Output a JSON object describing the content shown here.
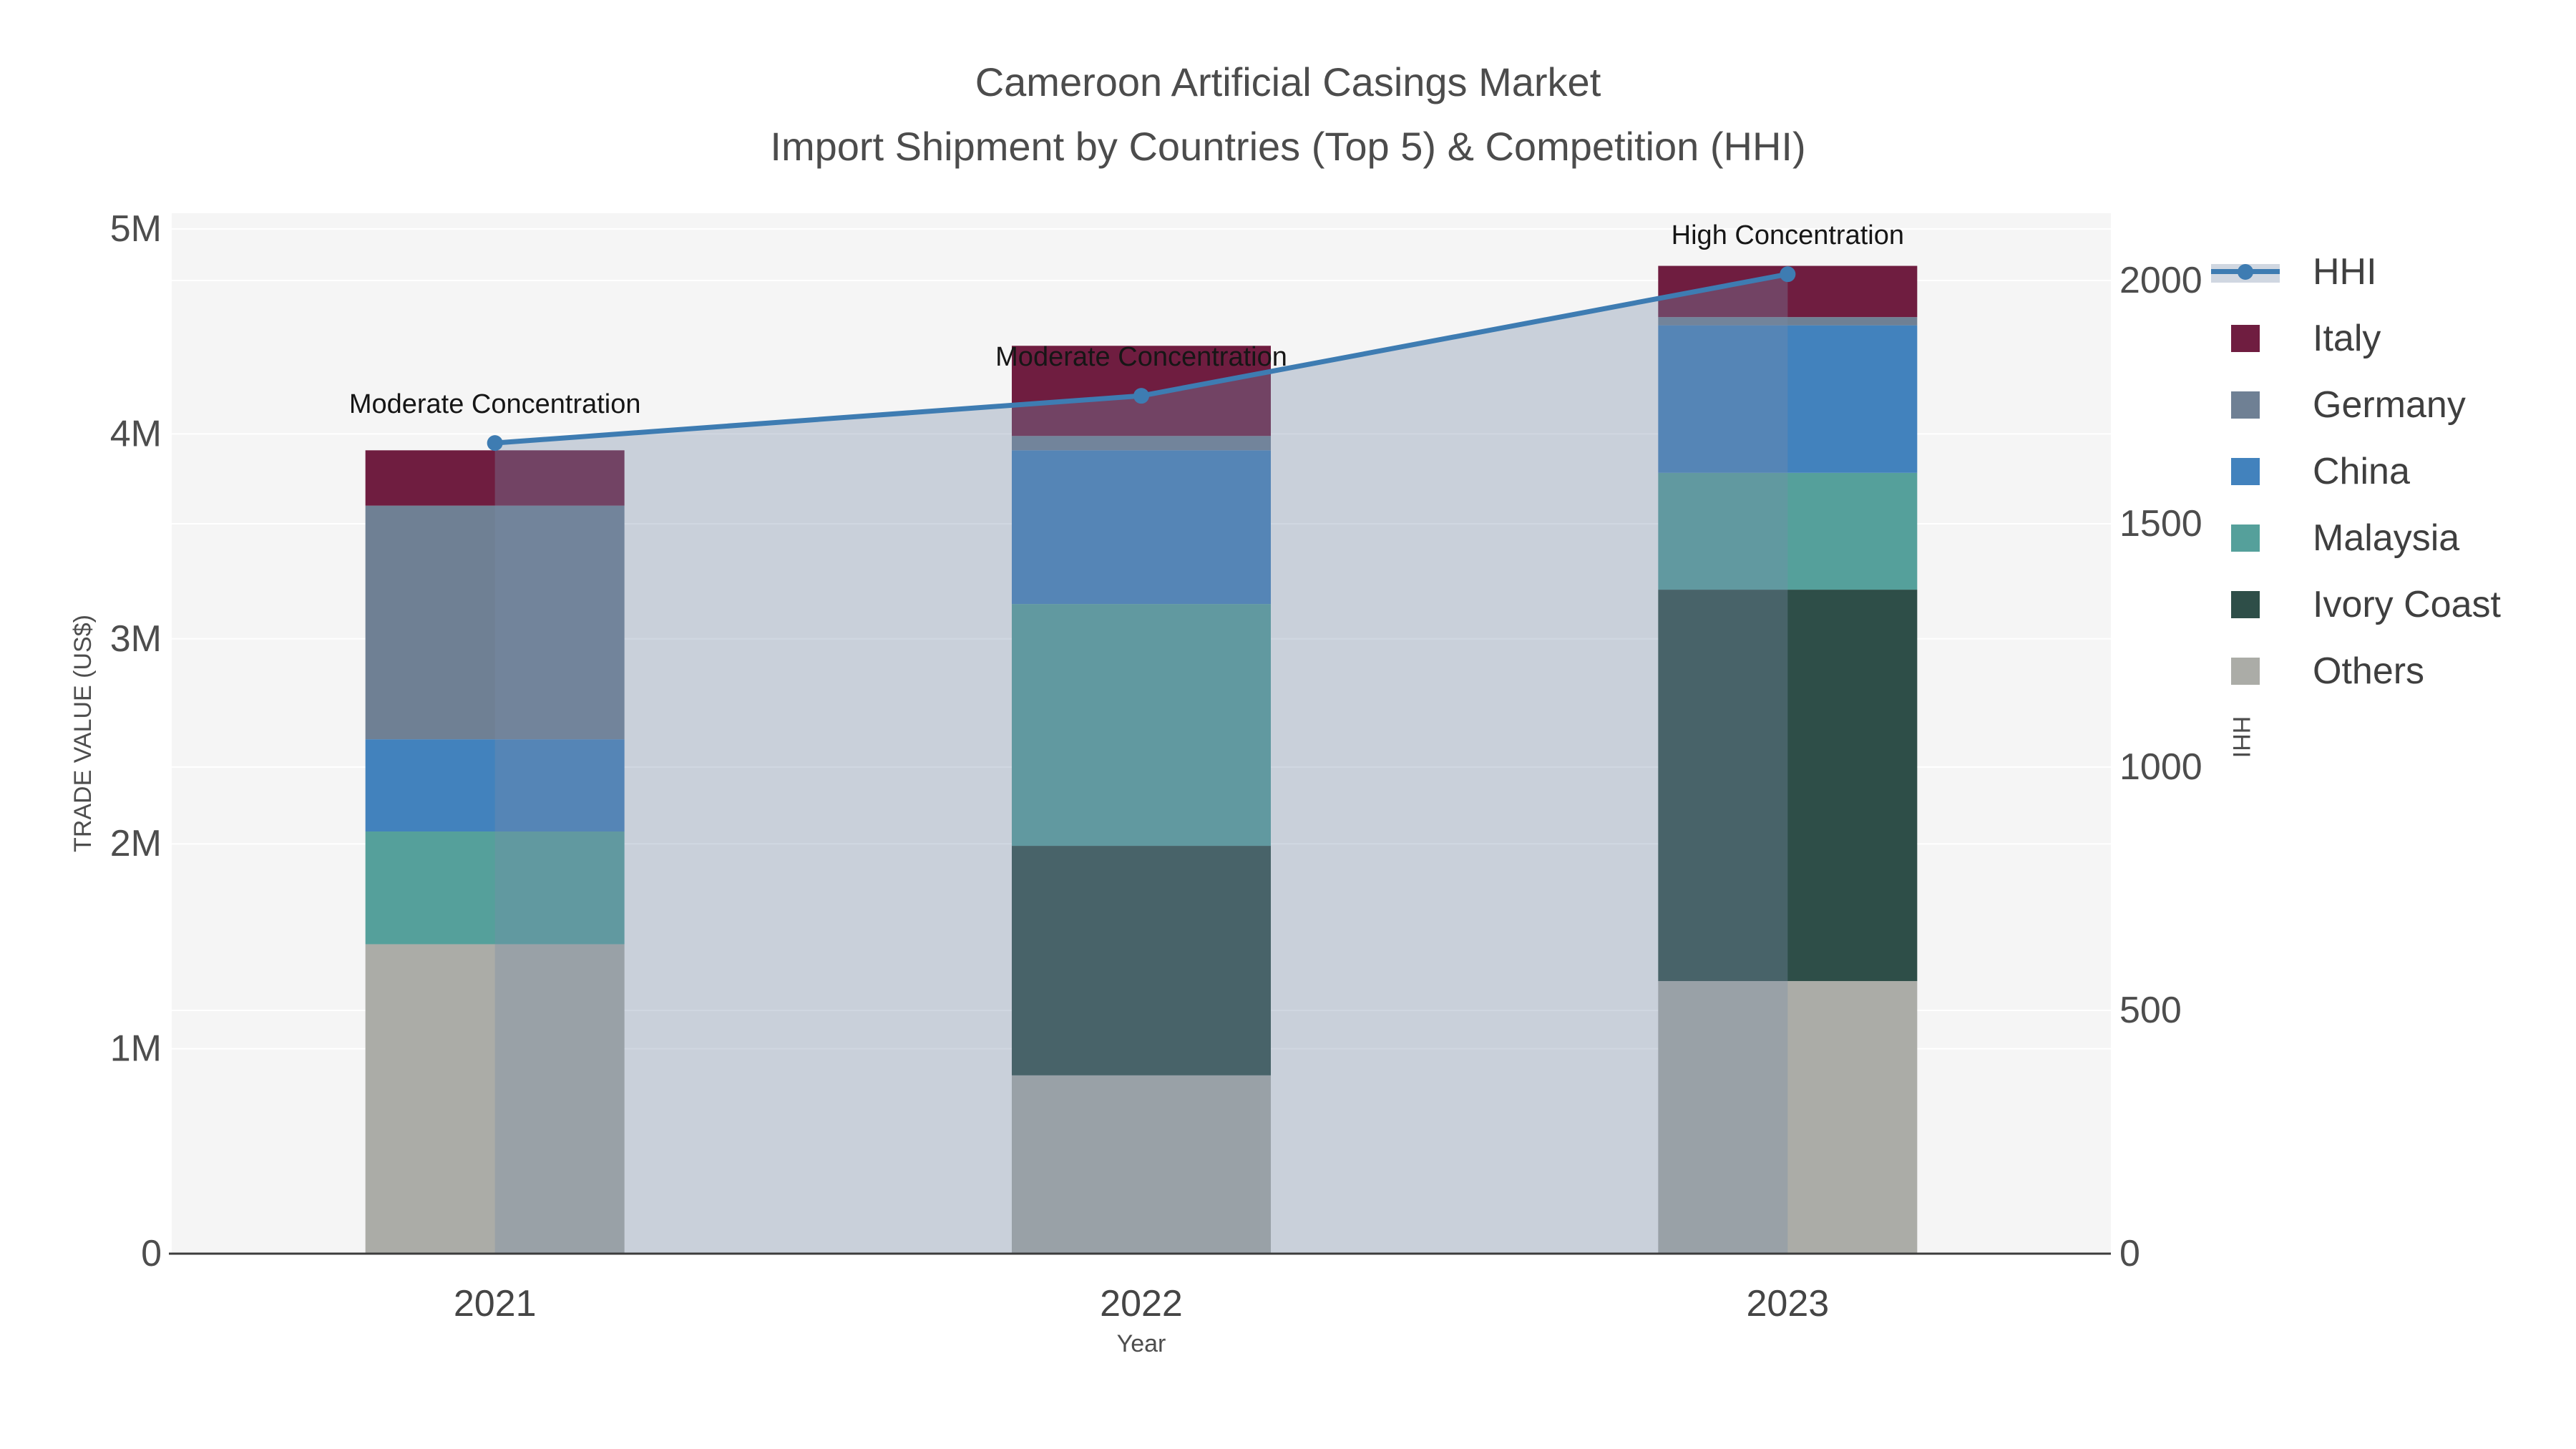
{
  "page": {
    "background": "#ffffff",
    "plot_background": "#f5f5f5",
    "gridline_color": "#ffffff",
    "axis_line_color": "#3c3c3c",
    "text_color": "#4c4c4c",
    "tick_color": "#4d4d4d",
    "annotation_color": "#161616",
    "legend_text_color": "#3f3f3f"
  },
  "chart_data": {
    "type": "bar+line",
    "title": "Cameroon Artificial Casings Market",
    "subtitle": "Import Shipment by Countries (Top 5) & Competition (HHI)",
    "xlabel": "Year",
    "ylabel_left": "TRADE VALUE (US$)",
    "ylabel_right": "HHI",
    "categories": [
      "2021",
      "2022",
      "2023"
    ],
    "stack_order_bottom_to_top": [
      "Others",
      "Ivory Coast",
      "Malaysia",
      "China",
      "Germany",
      "Italy"
    ],
    "series": [
      {
        "name": "Italy",
        "color": "#6f1d40",
        "values": [
          270000,
          440000,
          250000
        ]
      },
      {
        "name": "Germany",
        "color": "#6f8094",
        "values": [
          1140000,
          70000,
          40000
        ]
      },
      {
        "name": "China",
        "color": "#4282bd",
        "values": [
          450000,
          750000,
          720000
        ]
      },
      {
        "name": "Malaysia",
        "color": "#55a09b",
        "values": [
          550000,
          1180000,
          570000
        ]
      },
      {
        "name": "Ivory Coast",
        "color": "#2e4e48",
        "values": [
          0,
          1120000,
          1910000
        ]
      },
      {
        "name": "Others",
        "color": "#abaca7",
        "values": [
          1510000,
          870000,
          1330000
        ]
      }
    ],
    "bar_totals": [
      3920000,
      4430000,
      4820000
    ],
    "hhi": {
      "name": "HHI",
      "line_color": "#3e7cb2",
      "area_fill_color": "rgba(120,140,170,0.35)",
      "values": [
        1666,
        1763,
        2013
      ]
    },
    "annotations": [
      "Moderate Concentration",
      "Moderate Concentration",
      "High Concentration"
    ],
    "y_left_axis": {
      "min": 0,
      "max": 5000000,
      "tick_labels": [
        "0",
        "1M",
        "2M",
        "3M",
        "4M",
        "5M"
      ],
      "tick_values": [
        0,
        1000000,
        2000000,
        3000000,
        4000000,
        5000000
      ]
    },
    "y_right_axis": {
      "min": 0,
      "max": 2000,
      "tick_labels": [
        "0",
        "500",
        "1000",
        "1500",
        "2000"
      ],
      "tick_values": [
        0,
        500,
        1000,
        1500,
        2000
      ]
    },
    "legend_order": [
      "HHI",
      "Italy",
      "Germany",
      "China",
      "Malaysia",
      "Ivory Coast",
      "Others"
    ],
    "grid": "on",
    "legend_position": "right"
  }
}
